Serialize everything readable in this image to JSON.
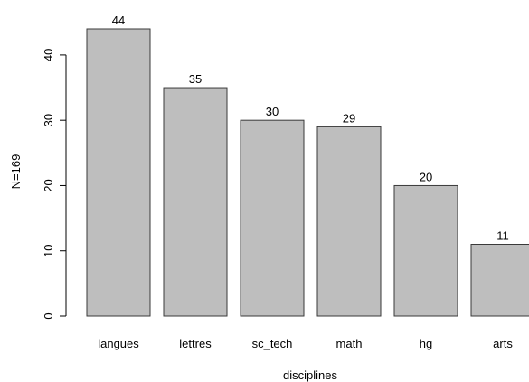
{
  "chart_data": {
    "type": "bar",
    "categories": [
      "langues",
      "lettres",
      "sc_tech",
      "math",
      "hg",
      "arts"
    ],
    "values": [
      44,
      35,
      30,
      29,
      20,
      11
    ],
    "data_labels": [
      "44",
      "35",
      "30",
      "29",
      "20",
      "11"
    ],
    "title": "",
    "xlabel": "disciplines",
    "ylabel": "N=169",
    "ylim": [
      0,
      44
    ],
    "yticks": [
      0,
      10,
      20,
      30,
      40
    ],
    "ytick_labels": [
      "0",
      "10",
      "20",
      "30",
      "40"
    ],
    "grid": false,
    "legend": "none",
    "colors": {
      "bar_fill": "#bebebe",
      "bar_stroke": "#3a3a3a",
      "axis": "#000000"
    }
  }
}
